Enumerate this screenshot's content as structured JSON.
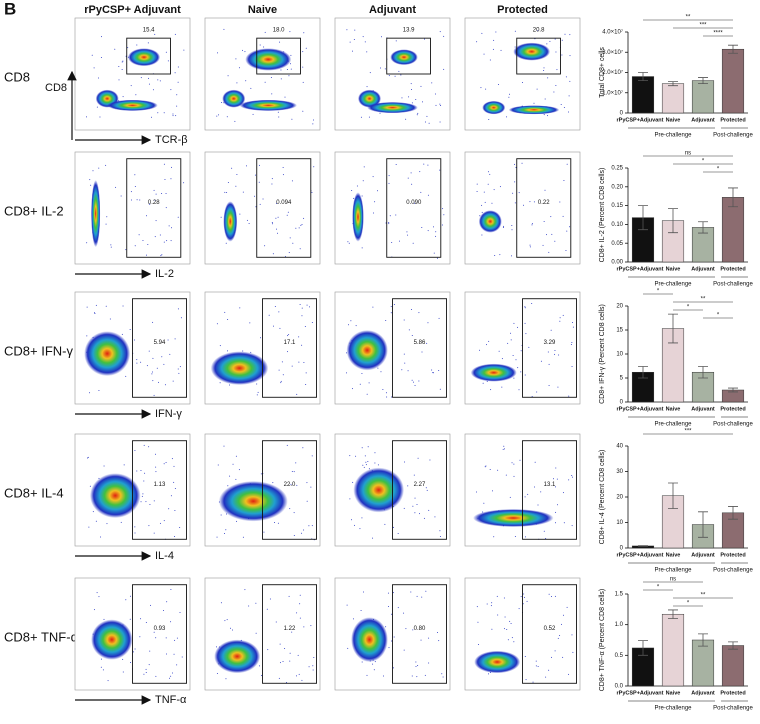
{
  "panel_label": "B",
  "columns": [
    "rPyCSP+ Adjuvant",
    "Naive",
    "Adjuvant",
    "Protected"
  ],
  "y_axis": "CD8",
  "rows": [
    {
      "label": "CD8",
      "x_axis": "TCR-β",
      "gates": [
        "15.4",
        "18.0",
        "13.9",
        "20.8"
      ]
    },
    {
      "label": "CD8+ IL-2",
      "x_axis": "IL-2",
      "gates": [
        "0.28",
        "0.094",
        "0.090",
        "0.22"
      ]
    },
    {
      "label": "CD8+ IFN-γ",
      "x_axis": "IFN-γ",
      "gates": [
        "5.94",
        "17.1",
        "5.86",
        "3.29"
      ]
    },
    {
      "label": "CD8+ IL-4",
      "x_axis": "IL-4",
      "gates": [
        "1.13",
        "22.0",
        "2.27",
        "13.1"
      ]
    },
    {
      "label": "CD8+ TNF-α",
      "x_axis": "TNF-α",
      "gates": [
        "0.93",
        "1.22",
        "0.80",
        "0.52"
      ]
    }
  ],
  "chart_data": [
    {
      "type": "bar",
      "ylabel": "Total CD8+ cells",
      "categories": [
        "rPyCSP+Adjuvant",
        "Naive",
        "Adjuvant",
        "Protected"
      ],
      "groups": [
        "Pre-challenge",
        "Post-challenge"
      ],
      "colors": [
        "#111111",
        "#e6d3d6",
        "#a7b2a2",
        "#8c6c70"
      ],
      "values": [
        18000000,
        14500000,
        16000000,
        31500000
      ],
      "errors": [
        2000000,
        1000000,
        1500000,
        2000000
      ],
      "ylim": [
        0,
        40000000
      ],
      "yticks": [
        0,
        {
          "value": 10000000,
          "label": "1.0×10⁷"
        },
        {
          "value": 20000000,
          "label": "2.0×10⁷"
        },
        {
          "value": 30000000,
          "label": "3.0×10⁷"
        },
        {
          "value": 40000000,
          "label": "4.0×10⁷"
        }
      ],
      "significance": [
        {
          "label": "**",
          "between": [
            "rPyCSP+Adjuvant",
            "Protected"
          ]
        },
        {
          "label": "***",
          "between": [
            "Naive",
            "Protected"
          ]
        },
        {
          "label": "****",
          "between": [
            "Adjuvant",
            "Protected"
          ]
        }
      ]
    },
    {
      "type": "bar",
      "ylabel": "CD8+ IL-2 (Percent CD8 cells)",
      "categories": [
        "rPyCSP+Adjuvant",
        "Naive",
        "Adjuvant",
        "Protected"
      ],
      "groups": [
        "Pre-challenge",
        "Post-challenge"
      ],
      "colors": [
        "#111111",
        "#e6d3d6",
        "#a7b2a2",
        "#8c6c70"
      ],
      "values": [
        0.118,
        0.11,
        0.092,
        0.172
      ],
      "errors": [
        0.032,
        0.032,
        0.015,
        0.025
      ],
      "ylim": [
        0,
        0.25
      ],
      "yticks": [
        {
          "value": 0,
          "label": "0.00"
        },
        0.05,
        {
          "value": 0.1,
          "label": "0.10"
        },
        0.15,
        {
          "value": 0.2,
          "label": "0.20"
        },
        0.25
      ],
      "significance": [
        {
          "label": "ns",
          "between": [
            "rPyCSP+Adjuvant",
            "Protected"
          ]
        },
        {
          "label": "*",
          "between": [
            "Naive",
            "Protected"
          ]
        },
        {
          "label": "*",
          "between": [
            "Adjuvant",
            "Protected"
          ]
        }
      ]
    },
    {
      "type": "bar",
      "ylabel": "CD8+ IFN-γ (Percent CD8 cells)",
      "categories": [
        "rPyCSP+Adjuvant",
        "Naive",
        "Adjuvant",
        "Protected"
      ],
      "groups": [
        "Pre-challenge",
        "Post-challenge"
      ],
      "colors": [
        "#111111",
        "#e6d3d6",
        "#a7b2a2",
        "#8c6c70"
      ],
      "values": [
        6.2,
        15.3,
        6.2,
        2.5
      ],
      "errors": [
        1.2,
        3,
        1.2,
        0.4
      ],
      "ylim": [
        0,
        20
      ],
      "yticks": [
        0,
        5,
        10,
        15,
        20
      ],
      "significance": [
        {
          "label": "*",
          "between": [
            "rPyCSP+Adjuvant",
            "Naive"
          ]
        },
        {
          "label": "**",
          "between": [
            "Naive",
            "Protected"
          ]
        },
        {
          "label": "*",
          "between": [
            "Naive",
            "Adjuvant"
          ]
        },
        {
          "label": "*",
          "between": [
            "Adjuvant",
            "Protected"
          ]
        }
      ]
    },
    {
      "type": "bar",
      "ylabel": "CD8+ IL-4 (Percent CD8 cells)",
      "categories": [
        "rPyCSP+Adjuvant",
        "Naive",
        "Adjuvant",
        "Protected"
      ],
      "groups": [
        "Pre-challenge",
        "Post-challenge"
      ],
      "colors": [
        "#111111",
        "#e6d3d6",
        "#a7b2a2",
        "#8c6c70"
      ],
      "values": [
        0.8,
        20.5,
        9.2,
        13.8
      ],
      "errors": [
        0.1,
        5,
        5,
        2.5
      ],
      "ylim": [
        0,
        40
      ],
      "yticks": [
        0,
        10,
        20,
        30,
        40
      ],
      "significance": [
        {
          "label": "***",
          "between": [
            "rPyCSP+Adjuvant",
            "Protected"
          ]
        }
      ]
    },
    {
      "type": "bar",
      "ylabel": "CD8+ TNF-α (Percent CD8 cells)",
      "categories": [
        "rPyCSP+Adjuvant",
        "Naive",
        "Adjuvant",
        "Protected"
      ],
      "groups": [
        "Pre-challenge",
        "Post-challenge"
      ],
      "colors": [
        "#111111",
        "#e6d3d6",
        "#a7b2a2",
        "#8c6c70"
      ],
      "values": [
        0.62,
        1.17,
        0.75,
        0.66
      ],
      "errors": [
        0.12,
        0.07,
        0.1,
        0.06
      ],
      "ylim": [
        0,
        1.5
      ],
      "yticks": [
        {
          "value": 0,
          "label": "0.0"
        },
        0.5,
        {
          "value": 1,
          "label": "1.0"
        },
        1.5
      ],
      "significance": [
        {
          "label": "ns",
          "between": [
            "rPyCSP+Adjuvant",
            "Adjuvant"
          ]
        },
        {
          "label": "*",
          "between": [
            "rPyCSP+Adjuvant",
            "Naive"
          ]
        },
        {
          "label": "**",
          "between": [
            "Naive",
            "Protected"
          ]
        },
        {
          "label": "*",
          "between": [
            "Naive",
            "Adjuvant"
          ]
        }
      ]
    }
  ]
}
